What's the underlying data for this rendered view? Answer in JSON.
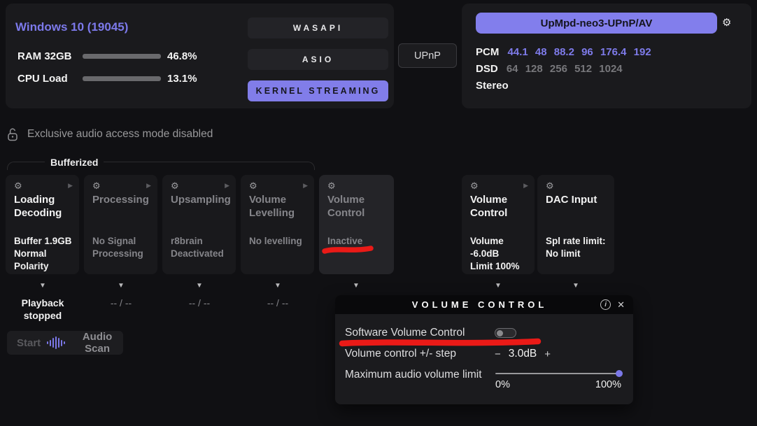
{
  "system": {
    "os_version": "Windows 10 (19045)",
    "ram_label": "RAM 32GB",
    "ram_value": "46.8%",
    "ram_pct": 46.8,
    "cpu_label": "CPU Load",
    "cpu_value": "13.1%",
    "cpu_pct": 13.1
  },
  "drivers": {
    "wasapi_label": "WASAPI",
    "asio_label": "ASIO",
    "kernel_streaming_label": "KERNEL STREAMING",
    "selected": "KERNEL STREAMING",
    "upnp_label": "UPnP"
  },
  "device": {
    "name": "UpMpd-neo3-UPnP/AV",
    "pcm_label": "PCM",
    "pcm_rates": "44.1 48 88.2 96 176.4 192",
    "dsd_label": "DSD",
    "dsd_rates": "64 128 256 512 1024",
    "channel_mode": "Stereo"
  },
  "status_bar": {
    "exclusive_mode_text": "Exclusive audio access mode disabled"
  },
  "bufferized_label": "Bufferized",
  "pipeline": {
    "cards": [
      {
        "title": "Loading\nDecoding",
        "detail": "Buffer 1.9GB\nNormal Polarity",
        "enabled": true
      },
      {
        "title": "Processing",
        "detail": "No Signal\nProcessing",
        "enabled": false
      },
      {
        "title": "Upsampling",
        "detail": "r8brain\nDeactivated",
        "enabled": false
      },
      {
        "title": "Volume\nLevelling",
        "detail": "No levelling",
        "enabled": false
      },
      {
        "title": "Volume Control",
        "detail": "Inactive",
        "enabled": false
      },
      {
        "title": "Volume Control",
        "detail": "Volume -6.0dB\nLimit 100%",
        "enabled": true
      },
      {
        "title": "DAC Input",
        "detail": "Spl rate limit:\nNo limit",
        "enabled": true
      }
    ],
    "playback_status": "Playback\nstopped",
    "empty_status": "-- / --"
  },
  "audio_scan": {
    "start_label": "Start",
    "scan_label": "Audio Scan"
  },
  "volume_popup": {
    "title": "VOLUME CONTROL",
    "software_volume_label": "Software Volume Control",
    "software_volume_enabled": false,
    "step_label": "Volume control +/- step",
    "step_minus": "−",
    "step_value": "3.0dB",
    "step_plus": "+",
    "limit_label": "Maximum audio volume limit",
    "limit_min_label": "0%",
    "limit_max_label": "100%",
    "limit_value_pct": 100
  },
  "icons": {
    "gear": "⚙",
    "collapse": "▶",
    "down": "▼",
    "close": "✕",
    "info": "i"
  },
  "colors": {
    "accent": "#7d79e9",
    "accent_text_dark": "#17171f",
    "annotation_red": "#ea1a17"
  }
}
